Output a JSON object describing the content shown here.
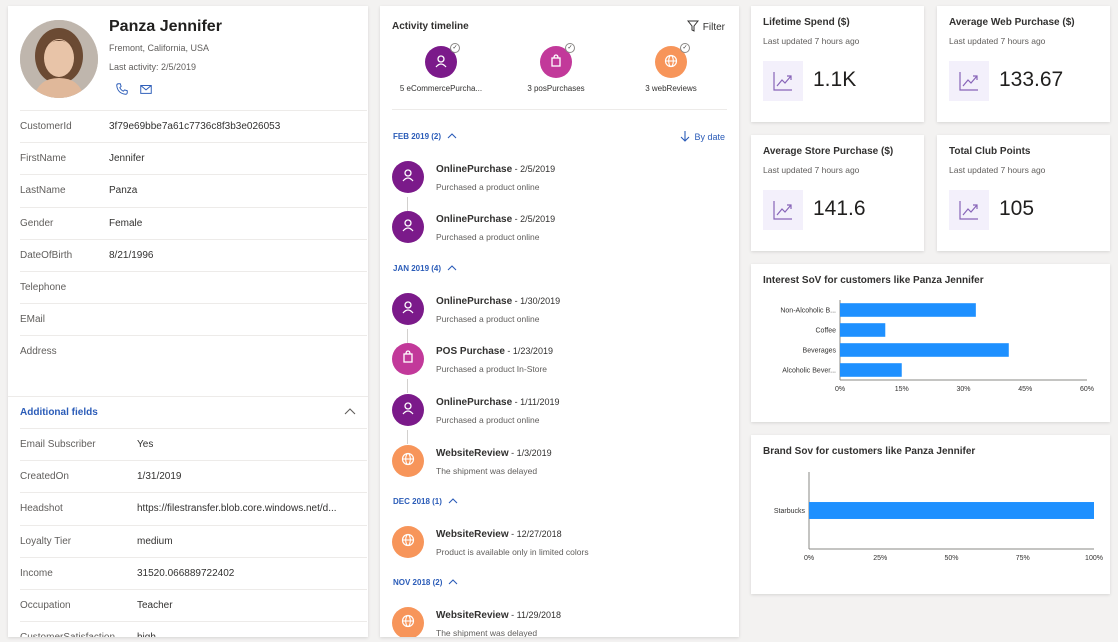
{
  "profile": {
    "name": "Panza Jennifer",
    "location": "Fremont, California, USA",
    "last_activity": "Last activity: 2/5/2019",
    "phone_icon": "phone-icon",
    "mail_icon": "mail-icon",
    "fields": [
      {
        "key": "CustomerId",
        "value": "3f79e69bbe7a61c7736c8f3b3e026053"
      },
      {
        "key": "FirstName",
        "value": "Jennifer"
      },
      {
        "key": "LastName",
        "value": "Panza"
      },
      {
        "key": "Gender",
        "value": "Female"
      },
      {
        "key": "DateOfBirth",
        "value": "8/21/1996"
      },
      {
        "key": "Telephone",
        "value": ""
      },
      {
        "key": "EMail",
        "value": ""
      },
      {
        "key": "Address",
        "value": ""
      }
    ],
    "additional_title": "Additional fields",
    "additional": [
      {
        "key": "Email Subscriber",
        "value": "Yes"
      },
      {
        "key": "CreatedOn",
        "value": "1/31/2019"
      },
      {
        "key": "Headshot",
        "value": "https://filestransfer.blob.core.windows.net/d..."
      },
      {
        "key": "Loyalty Tier",
        "value": "medium"
      },
      {
        "key": "Income",
        "value": "31520.066889722402"
      },
      {
        "key": "Occupation",
        "value": "Teacher"
      },
      {
        "key": "CustomerSatisfaction",
        "value": "high"
      }
    ]
  },
  "timeline": {
    "title": "Activity timeline",
    "filter": "Filter",
    "by_date": "By date",
    "summary": [
      {
        "label": "5 eCommercePurcha...",
        "color": "#7b1a8a",
        "icon": "person-icon"
      },
      {
        "label": "3 posPurchases",
        "color": "#c2399a",
        "icon": "bag-icon"
      },
      {
        "label": "3 webReviews",
        "color": "#f7955a",
        "icon": "globe-icon"
      }
    ],
    "months": [
      {
        "label": "FEB 2019 (2)"
      },
      {
        "label": "JAN 2019 (4)"
      },
      {
        "label": "DEC 2018 (1)"
      },
      {
        "label": "NOV 2018 (2)"
      }
    ],
    "events": [
      {
        "title": "OnlinePurchase",
        "date": " - 2/5/2019",
        "sub": "Purchased a product online",
        "color": "#7b1a8a",
        "icon": "person-icon"
      },
      {
        "title": "OnlinePurchase",
        "date": " - 2/5/2019",
        "sub": "Purchased a product online",
        "color": "#7b1a8a",
        "icon": "person-icon"
      },
      {
        "title": "OnlinePurchase",
        "date": " - 1/30/2019",
        "sub": "Purchased a product online",
        "color": "#7b1a8a",
        "icon": "person-icon"
      },
      {
        "title": "POS Purchase",
        "date": " - 1/23/2019",
        "sub": "Purchased a product In-Store",
        "color": "#c2399a",
        "icon": "bag-icon"
      },
      {
        "title": "OnlinePurchase",
        "date": " - 1/11/2019",
        "sub": "Purchased a product online",
        "color": "#7b1a8a",
        "icon": "person-icon"
      },
      {
        "title": "WebsiteReview",
        "date": " - 1/3/2019",
        "sub": "The shipment was delayed",
        "color": "#f7955a",
        "icon": "globe-icon"
      },
      {
        "title": "WebsiteReview",
        "date": " - 12/27/2018",
        "sub": "Product is available only in limited colors",
        "color": "#f7955a",
        "icon": "globe-icon"
      },
      {
        "title": "WebsiteReview",
        "date": " - 11/29/2018",
        "sub": "The shipment was delayed",
        "color": "#f7955a",
        "icon": "globe-icon"
      }
    ]
  },
  "kpis": [
    {
      "title": "Lifetime Spend ($)",
      "updated": "Last updated 7 hours ago",
      "value": "1.1K"
    },
    {
      "title": "Average Web Purchase ($)",
      "updated": "Last updated 7 hours ago",
      "value": "133.67"
    },
    {
      "title": "Average Store Purchase ($)",
      "updated": "Last updated 7 hours ago",
      "value": "141.6"
    },
    {
      "title": "Total Club Points",
      "updated": "Last updated 7 hours ago",
      "value": "105"
    }
  ],
  "accent_color": "#1e90ff",
  "chart_data": [
    {
      "type": "bar",
      "orientation": "horizontal",
      "title": "Interest SoV for customers like Panza Jennifer",
      "categories": [
        "Non-Alcoholic B...",
        "Coffee",
        "Beverages",
        "Alcoholic Bever..."
      ],
      "values": [
        33,
        11,
        41,
        15
      ],
      "xticks": [
        "0%",
        "15%",
        "30%",
        "45%",
        "60%"
      ],
      "xlim": [
        0,
        60
      ],
      "unit": "%"
    },
    {
      "type": "bar",
      "orientation": "horizontal",
      "title": "Brand Sov for customers like Panza Jennifer",
      "categories": [
        "Starbucks"
      ],
      "values": [
        100
      ],
      "xticks": [
        "0%",
        "25%",
        "50%",
        "75%",
        "100%"
      ],
      "xlim": [
        0,
        100
      ],
      "unit": "%"
    }
  ]
}
